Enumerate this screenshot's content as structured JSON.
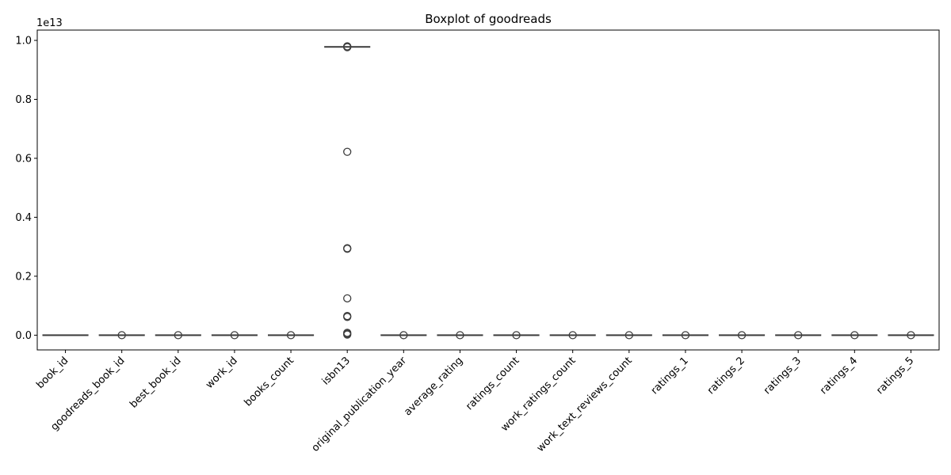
{
  "chart_data": {
    "type": "boxplot",
    "title": "Boxplot of goodreads",
    "ylabel": "",
    "xlabel": "",
    "y_offset_label": "1e13",
    "y_scale": 10000000000000.0,
    "ylim": [
      -0.05,
      1.035
    ],
    "yticks": [
      0.0,
      0.2,
      0.4,
      0.6,
      0.8,
      1.0
    ],
    "ytick_labels": [
      "0.0",
      "0.2",
      "0.4",
      "0.6",
      "0.8",
      "1.0"
    ],
    "box_color": "#3d3d3d",
    "categories": [
      "book_id",
      "goodreads_book_id",
      "best_book_id",
      "work_id",
      "books_count",
      "isbn13",
      "original_publication_year",
      "average_rating",
      "ratings_count",
      "work_ratings_count",
      "work_text_reviews_count",
      "ratings_1",
      "ratings_2",
      "ratings_3",
      "ratings_4",
      "ratings_5"
    ],
    "series": [
      {
        "q1": 0,
        "median": 0,
        "q3": 0,
        "whisker_low": 0,
        "whisker_high": 0,
        "fliers": []
      },
      {
        "q1": 0,
        "median": 0,
        "q3": 0,
        "whisker_low": 0,
        "whisker_high": 0,
        "fliers": [
          0.0
        ]
      },
      {
        "q1": 0,
        "median": 0,
        "q3": 0,
        "whisker_low": 0,
        "whisker_high": 0,
        "fliers": [
          0.0
        ]
      },
      {
        "q1": 0,
        "median": 0,
        "q3": 0,
        "whisker_low": 0,
        "whisker_high": 0,
        "fliers": [
          0.0
        ]
      },
      {
        "q1": 0,
        "median": 0,
        "q3": 0,
        "whisker_low": 0,
        "whisker_high": 0,
        "fliers": [
          0.0
        ]
      },
      {
        "q1": 0.978,
        "median": 0.978,
        "q3": 0.978,
        "whisker_low": 0.978,
        "whisker_high": 0.978,
        "fliers": [
          0.977,
          0.979,
          0.98,
          0.622,
          0.295,
          0.293,
          0.125,
          0.065,
          0.062,
          0.008,
          0.005,
          0.002
        ]
      },
      {
        "q1": 0,
        "median": 0,
        "q3": 0,
        "whisker_low": 0,
        "whisker_high": 0,
        "fliers": [
          0.0
        ]
      },
      {
        "q1": 0,
        "median": 0,
        "q3": 0,
        "whisker_low": 0,
        "whisker_high": 0,
        "fliers": [
          0.0
        ]
      },
      {
        "q1": 0,
        "median": 0,
        "q3": 0,
        "whisker_low": 0,
        "whisker_high": 0,
        "fliers": [
          0.0
        ]
      },
      {
        "q1": 0,
        "median": 0,
        "q3": 0,
        "whisker_low": 0,
        "whisker_high": 0,
        "fliers": [
          0.0
        ]
      },
      {
        "q1": 0,
        "median": 0,
        "q3": 0,
        "whisker_low": 0,
        "whisker_high": 0,
        "fliers": [
          0.0
        ]
      },
      {
        "q1": 0,
        "median": 0,
        "q3": 0,
        "whisker_low": 0,
        "whisker_high": 0,
        "fliers": [
          0.0
        ]
      },
      {
        "q1": 0,
        "median": 0,
        "q3": 0,
        "whisker_low": 0,
        "whisker_high": 0,
        "fliers": [
          0.0
        ]
      },
      {
        "q1": 0,
        "median": 0,
        "q3": 0,
        "whisker_low": 0,
        "whisker_high": 0,
        "fliers": [
          0.0
        ]
      },
      {
        "q1": 0,
        "median": 0,
        "q3": 0,
        "whisker_low": 0,
        "whisker_high": 0,
        "fliers": [
          0.0
        ]
      },
      {
        "q1": 0,
        "median": 0,
        "q3": 0,
        "whisker_low": 0,
        "whisker_high": 0,
        "fliers": [
          0.0
        ]
      }
    ],
    "grid": false,
    "legend": "none"
  }
}
